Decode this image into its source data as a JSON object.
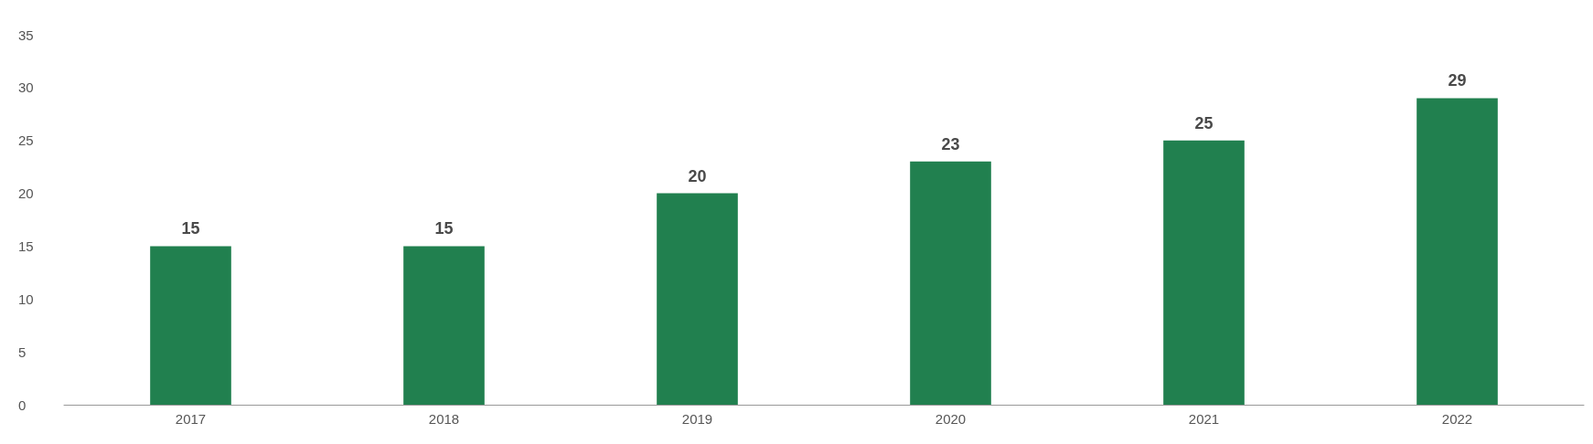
{
  "chart_data": {
    "type": "bar",
    "categories": [
      "2017",
      "2018",
      "2019",
      "2020",
      "2021",
      "2022"
    ],
    "values": [
      15,
      15,
      20,
      23,
      25,
      29
    ],
    "color": "#21804f",
    "ylim": [
      0,
      35
    ],
    "yticks": [
      0,
      5,
      10,
      15,
      20,
      25,
      30,
      35
    ],
    "grid": false,
    "data_labels": true
  }
}
